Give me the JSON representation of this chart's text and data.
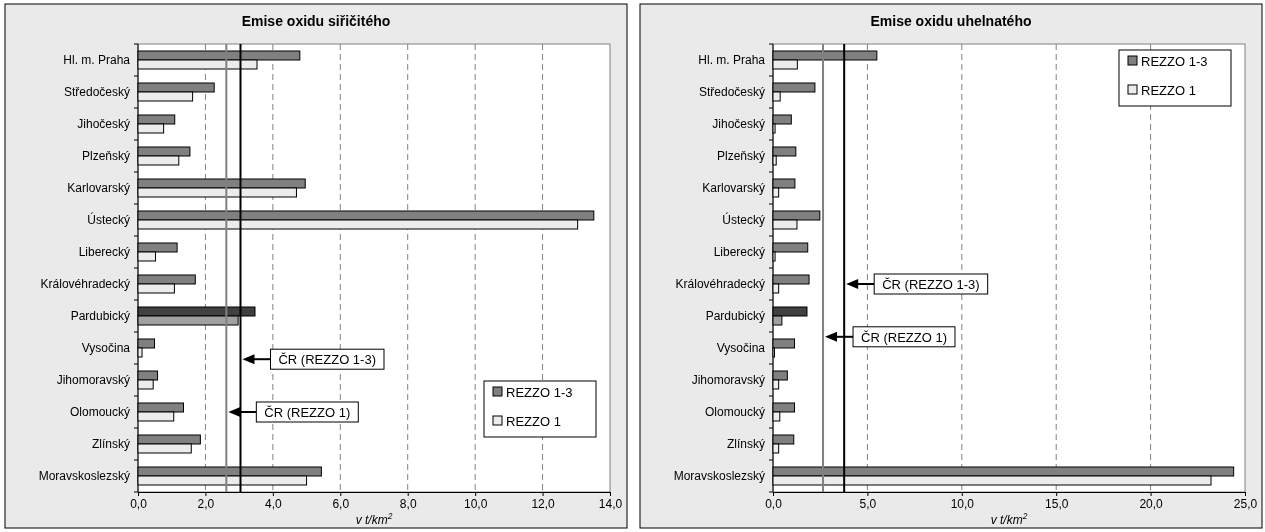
{
  "chart_data": [
    {
      "type": "bar",
      "orientation": "horizontal",
      "title": "Emise oxidu siřičitého",
      "xlabel": "v t/km$^{2}$",
      "categories": [
        "Hl. m. Praha",
        "Středočeský",
        "Jihočeský",
        "Plzeňský",
        "Karlovarský",
        "Ústecký",
        "Liberecký",
        "Královéhradecký",
        "Pardubický",
        "Vysočina",
        "Jihomoravský",
        "Olomoucký",
        "Zlínský",
        "Moravskoslezský"
      ],
      "series": [
        {
          "name": "REZZO 1-3",
          "color": "#808080",
          "colors": [
            "#808080",
            "#808080",
            "#808080",
            "#808080",
            "#808080",
            "#808080",
            "#808080",
            "#808080",
            "#404040",
            "#808080",
            "#808080",
            "#808080",
            "#808080",
            "#808080"
          ],
          "values": [
            4.8,
            2.26,
            1.09,
            1.54,
            4.96,
            13.52,
            1.16,
            1.7,
            3.47,
            0.49,
            0.58,
            1.35,
            1.85,
            5.44
          ]
        },
        {
          "name": "REZZO 1",
          "color": "#ececec",
          "colors": [
            "#ececec",
            "#ececec",
            "#ececec",
            "#ececec",
            "#ececec",
            "#ececec",
            "#ececec",
            "#ececec",
            "#a0a0a0",
            "#ececec",
            "#ececec",
            "#ececec",
            "#ececec",
            "#ececec"
          ],
          "values": [
            3.53,
            1.62,
            0.76,
            1.21,
            4.7,
            13.04,
            0.52,
            1.08,
            2.97,
            0.12,
            0.45,
            1.06,
            1.58,
            5.0
          ]
        }
      ],
      "xlim": [
        0,
        14
      ],
      "xticks": [
        {
          "value": 0,
          "label": "0,0"
        },
        {
          "value": 2,
          "label": "2,0"
        },
        {
          "value": 4,
          "label": "4,0"
        },
        {
          "value": 6,
          "label": "6,0"
        },
        {
          "value": 8,
          "label": "8,0"
        },
        {
          "value": 10,
          "label": "10,0"
        },
        {
          "value": 12,
          "label": "12,0"
        },
        {
          "value": 14,
          "label": "14,0"
        }
      ],
      "grid": "x",
      "legend": "bottom right",
      "ref_lines": [
        {
          "axis": "x",
          "value": 3.04,
          "label": "ČR (REZZO 1-3)",
          "color": "#000000"
        },
        {
          "axis": "x",
          "value": 2.62,
          "label": "ČR (REZZO 1)",
          "color": "#808080"
        }
      ]
    },
    {
      "type": "bar",
      "orientation": "horizontal",
      "title": "Emise oxidu uhelnatého",
      "xlabel": "v t/km$^{2}$",
      "categories": [
        "Hl. m. Praha",
        "Středočeský",
        "Jihočeský",
        "Plzeňský",
        "Karlovarský",
        "Ústecký",
        "Liberecký",
        "Královéhradecký",
        "Pardubický",
        "Vysočina",
        "Jihomoravský",
        "Olomoucký",
        "Zlínský",
        "Moravskoslezský"
      ],
      "series": [
        {
          "name": "REZZO 1-3",
          "color": "#808080",
          "colors": [
            "#808080",
            "#808080",
            "#808080",
            "#808080",
            "#808080",
            "#808080",
            "#808080",
            "#808080",
            "#404040",
            "#808080",
            "#808080",
            "#808080",
            "#808080",
            "#808080"
          ],
          "values": [
            5.5,
            2.22,
            0.97,
            1.21,
            1.16,
            2.48,
            1.84,
            1.91,
            1.8,
            1.14,
            0.76,
            1.14,
            1.1,
            24.4
          ]
        },
        {
          "name": "REZZO 1",
          "color": "#ececec",
          "colors": [
            "#ececec",
            "#ececec",
            "#ececec",
            "#ececec",
            "#ececec",
            "#ececec",
            "#ececec",
            "#ececec",
            "#a0a0a0",
            "#ececec",
            "#ececec",
            "#ececec",
            "#ececec",
            "#ececec"
          ],
          "values": [
            1.29,
            0.38,
            0.11,
            0.17,
            0.3,
            1.27,
            0.11,
            0.3,
            0.47,
            0.08,
            0.3,
            0.36,
            0.3,
            23.2
          ]
        }
      ],
      "xlim": [
        0,
        25
      ],
      "xticks": [
        {
          "value": 0,
          "label": "0,0"
        },
        {
          "value": 5,
          "label": "5,0"
        },
        {
          "value": 10,
          "label": "10,0"
        },
        {
          "value": 15,
          "label": "15,0"
        },
        {
          "value": 20,
          "label": "20,0"
        },
        {
          "value": 25,
          "label": "25,0"
        }
      ],
      "grid": "x",
      "legend": "top right",
      "ref_lines": [
        {
          "axis": "x",
          "value": 3.77,
          "label": "ČR (REZZO 1-3)",
          "color": "#000000"
        },
        {
          "axis": "x",
          "value": 2.65,
          "label": "ČR (REZZO 1)",
          "color": "#808080"
        }
      ]
    }
  ]
}
